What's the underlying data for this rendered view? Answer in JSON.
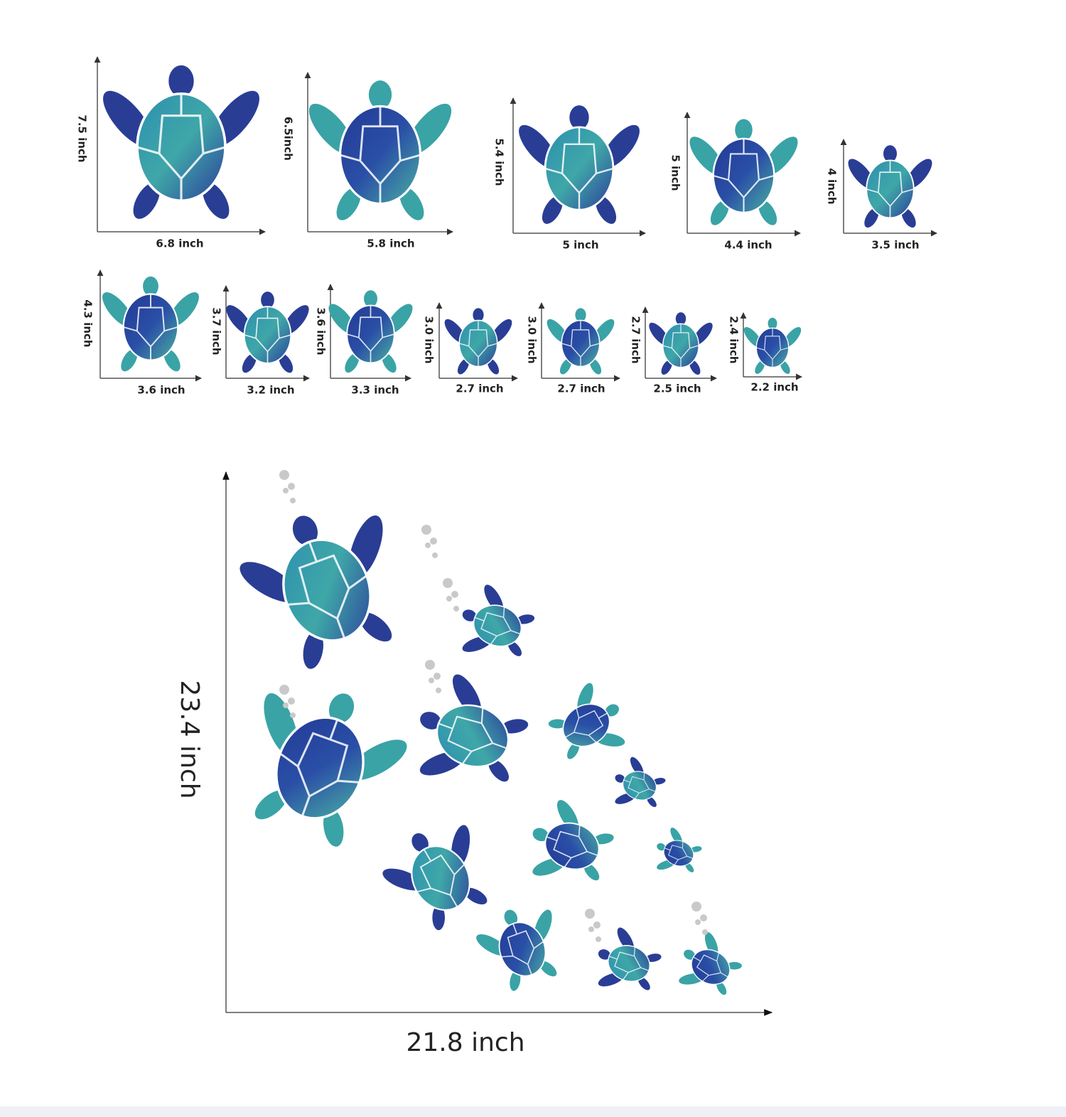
{
  "stickers": [
    {
      "height": "7.5 inch",
      "width": "6.8 inch"
    },
    {
      "height": "6.5inch",
      "width": "5.8 inch"
    },
    {
      "height": "5.4 inch",
      "width": "5 inch"
    },
    {
      "height": "5 inch",
      "width": "4.4 inch"
    },
    {
      "height": "4 inch",
      "width": "3.5 inch"
    },
    {
      "height": "4.3 inch",
      "width": "3.6 inch"
    },
    {
      "height": "3.7 inch",
      "width": "3.2 inch"
    },
    {
      "height": "3.6 inch",
      "width": "3.3 inch"
    },
    {
      "height": "3.0 inch",
      "width": "2.7 inch"
    },
    {
      "height": "3.0 inch",
      "width": "2.7 inch"
    },
    {
      "height": "2.7 inch",
      "width": "2.5 inch"
    },
    {
      "height": "2.4 inch",
      "width": "2.2 inch"
    }
  ],
  "layout": {
    "height": "23.4 inch",
    "width": "21.8 inch"
  }
}
